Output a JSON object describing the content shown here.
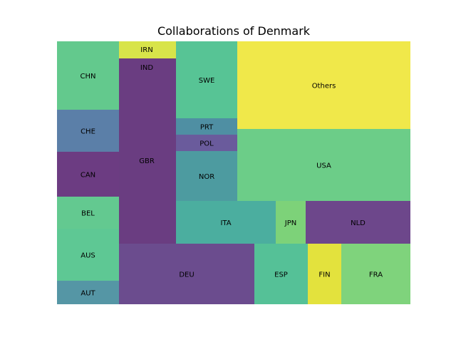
{
  "chart_data": {
    "type": "treemap",
    "title": "Collaborations of Denmark",
    "cells": [
      {
        "label": "Others",
        "color": "#f0e84a",
        "value": 61.5
      },
      {
        "label": "USA",
        "color": "#6ccd88",
        "value": 49.5
      },
      {
        "label": "GBR",
        "color": "#6a3d81",
        "value": 45.0
      },
      {
        "label": "DEU",
        "color": "#6b4c8e",
        "value": 37.5
      },
      {
        "label": "NLD",
        "color": "#6d478b",
        "value": 19.9
      },
      {
        "label": "FRA",
        "color": "#7fd37c",
        "value": 19.4
      },
      {
        "label": "CHN",
        "color": "#63c98d",
        "value": 19.1
      },
      {
        "label": "SWE",
        "color": "#57c495",
        "value": 18.7
      },
      {
        "label": "ITA",
        "color": "#4bae9f",
        "value": 17.8
      },
      {
        "label": "ESP",
        "color": "#55c197",
        "value": 14.7
      },
      {
        "label": "AUS",
        "color": "#5ec894",
        "value": 14.2
      },
      {
        "label": "CAN",
        "color": "#6c3c82",
        "value": 12.5
      },
      {
        "label": "NOR",
        "color": "#4d9ba0",
        "value": 12.2
      },
      {
        "label": "CHE",
        "color": "#5b7fa8",
        "value": 11.9
      },
      {
        "label": "FIN",
        "color": "#e3e23d",
        "value": 9.3
      },
      {
        "label": "BEL",
        "color": "#63c990",
        "value": 9.1
      },
      {
        "label": "JPN",
        "color": "#7dd279",
        "value": 8.4
      },
      {
        "label": "AUT",
        "color": "#5596a5",
        "value": 6.7
      },
      {
        "label": "PRT",
        "color": "#4f8fa3",
        "value": 4.0
      },
      {
        "label": "POL",
        "color": "#6a5b9c",
        "value": 4.0
      },
      {
        "label": "IRN",
        "color": "#d8e44a",
        "value": 3.8
      },
      {
        "label": "IND",
        "color": "#6b3f86",
        "value": null
      }
    ]
  }
}
